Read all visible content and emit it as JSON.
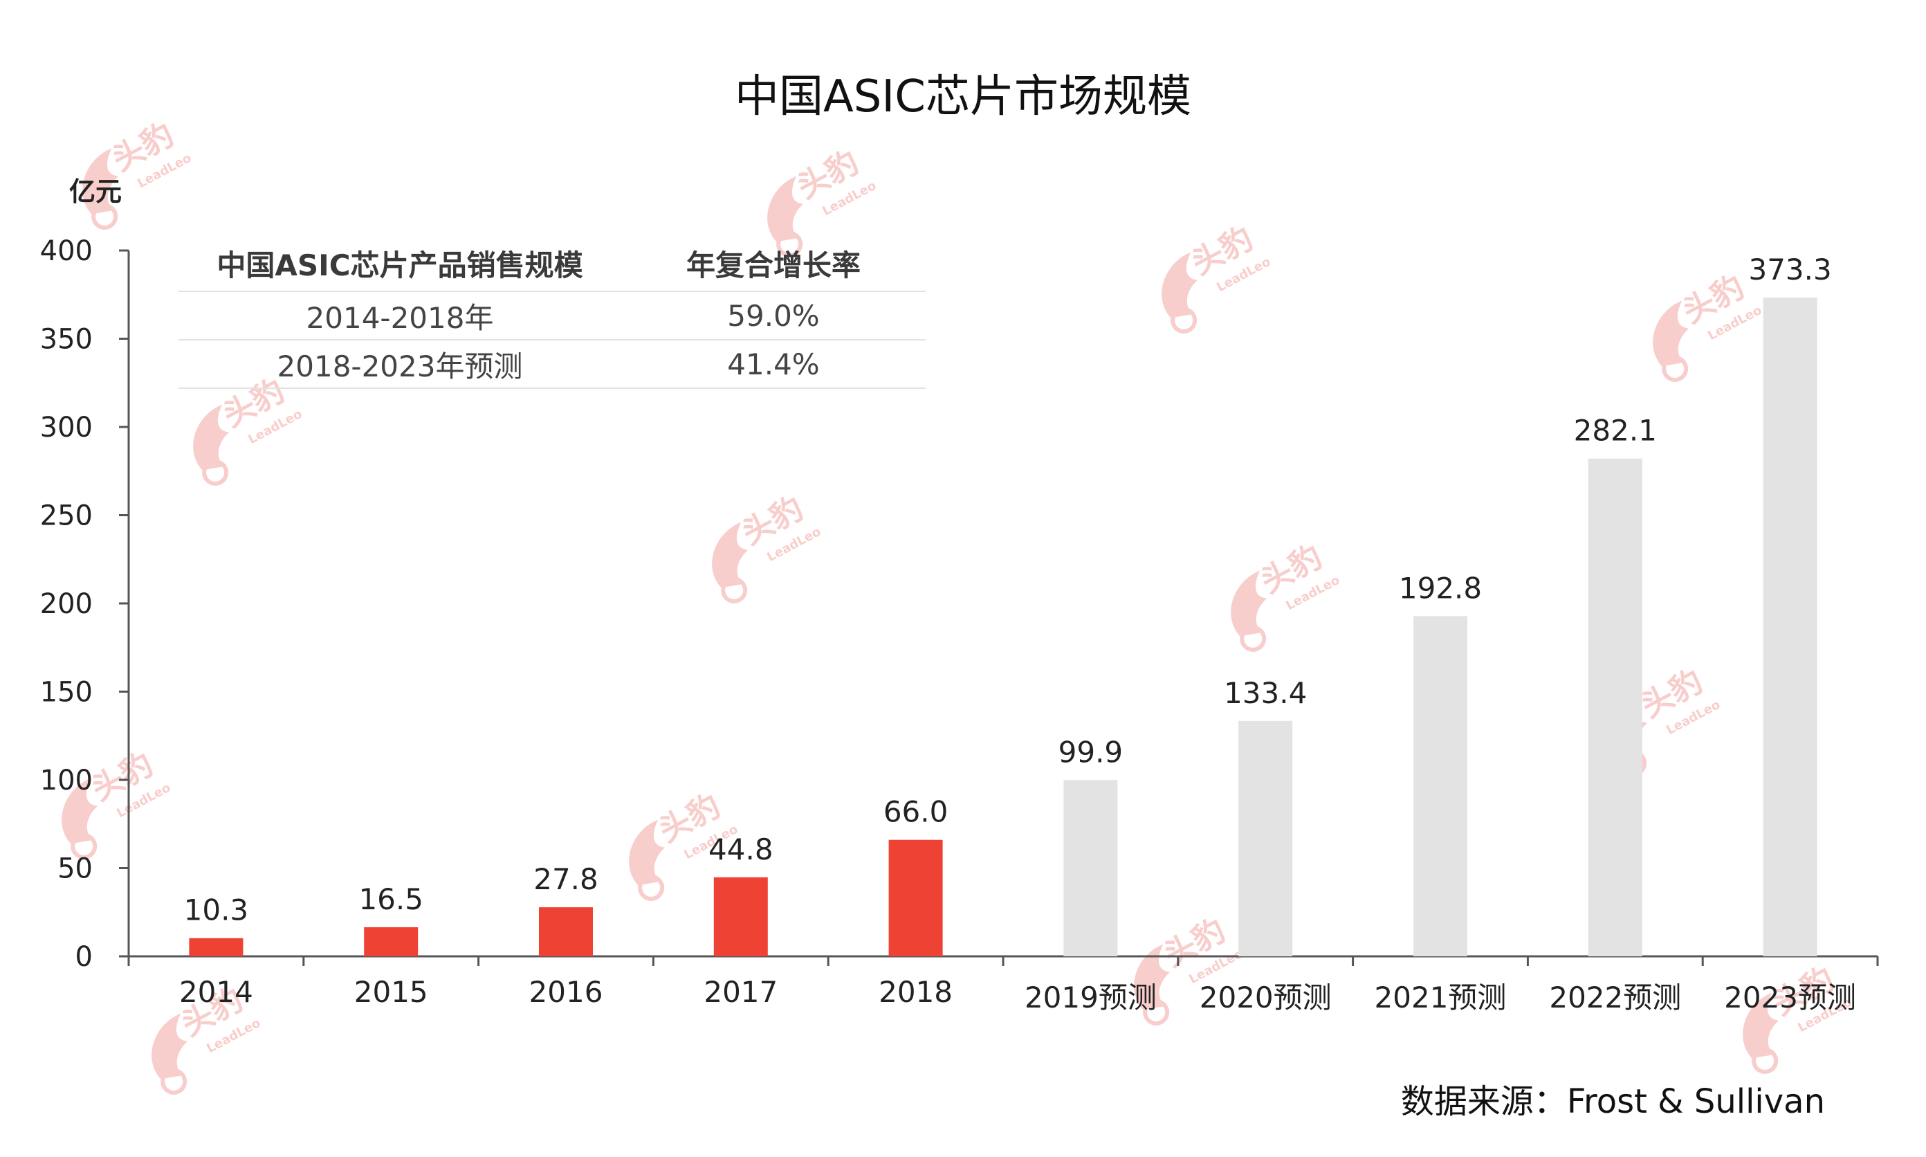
{
  "chart_data": {
    "type": "bar",
    "title": "中国ASIC芯片市场规模",
    "ylabel": "亿元",
    "xlabel": "",
    "ylim": [
      0,
      400
    ],
    "yticks": [
      0,
      50,
      100,
      150,
      200,
      250,
      300,
      350,
      400
    ],
    "categories": [
      "2014",
      "2015",
      "2016",
      "2017",
      "2018",
      "2019预测",
      "2020预测",
      "2021预测",
      "2022预测",
      "2023预测"
    ],
    "values": [
      10.3,
      16.5,
      27.8,
      44.8,
      66.0,
      99.9,
      133.4,
      192.8,
      282.1,
      373.3
    ],
    "data_labels": [
      "10.3",
      "16.5",
      "27.8",
      "44.8",
      "66.0",
      "99.9",
      "133.4",
      "192.8",
      "282.1",
      "373.3"
    ],
    "forecast": [
      false,
      false,
      false,
      false,
      false,
      true,
      true,
      true,
      true,
      true
    ],
    "colors": {
      "actual": "#ee4235",
      "forecast": "#e3e3e3",
      "axis": "#555555",
      "watermark": "#f3a7a4"
    }
  },
  "cagr_table": {
    "headers": [
      "中国ASIC芯片产品销售规模",
      "年复合增长率"
    ],
    "rows": [
      {
        "period": "2014-2018年",
        "rate": "59.0%"
      },
      {
        "period": "2018-2023年预测",
        "rate": "41.4%"
      }
    ]
  },
  "watermark": {
    "brand": "头豹",
    "sub": "LeadLeo"
  },
  "source": "数据来源：Frost & Sullivan"
}
